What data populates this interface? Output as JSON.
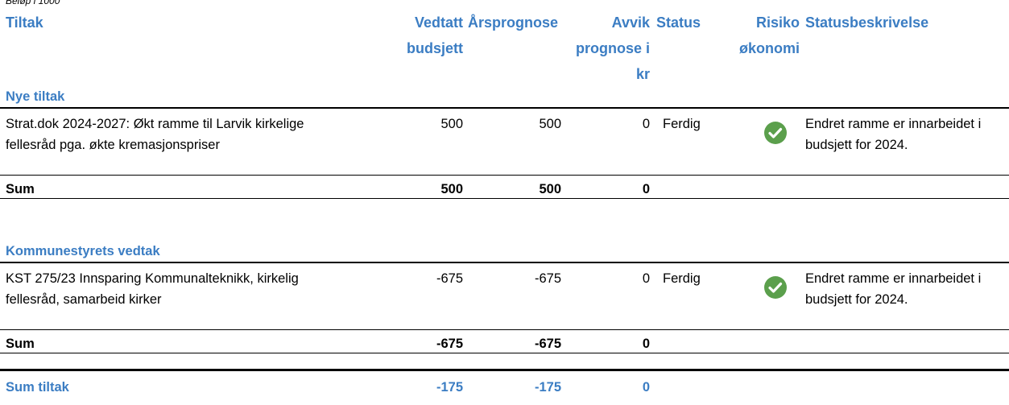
{
  "caption": "Beløp i 1000",
  "header": [
    "Tiltak",
    "Vedtatt budsjett",
    "Årsprognose",
    "Avvik prognose i kr",
    "Status",
    "Risiko økonomi",
    "Statusbeskrivelse"
  ],
  "sections": [
    {
      "title": "Nye tiltak",
      "rows": [
        [
          "Strat.dok 2024-2027: Økt ramme til Larvik kirkelige fellesråd pga. økte kremasjonspriser",
          500,
          500,
          0,
          "Ferdig",
          "Endret ramme er innarbeidet i budsjett for 2024."
        ]
      ],
      "sum": [
        "Sum",
        500,
        500,
        0
      ]
    },
    {
      "title": "Kommunestyrets vedtak",
      "rows": [
        [
          "KST 275/23 Innsparing Kommunalteknikk, kirkelig fellesråd, samarbeid kirker",
          -675,
          -675,
          0,
          "Ferdig",
          "Endret ramme er innarbeidet i budsjett for 2024."
        ]
      ],
      "sum": [
        "Sum",
        -675,
        -675,
        0
      ]
    }
  ],
  "total": [
    "Sum tiltak",
    -175,
    -175,
    0
  ]
}
